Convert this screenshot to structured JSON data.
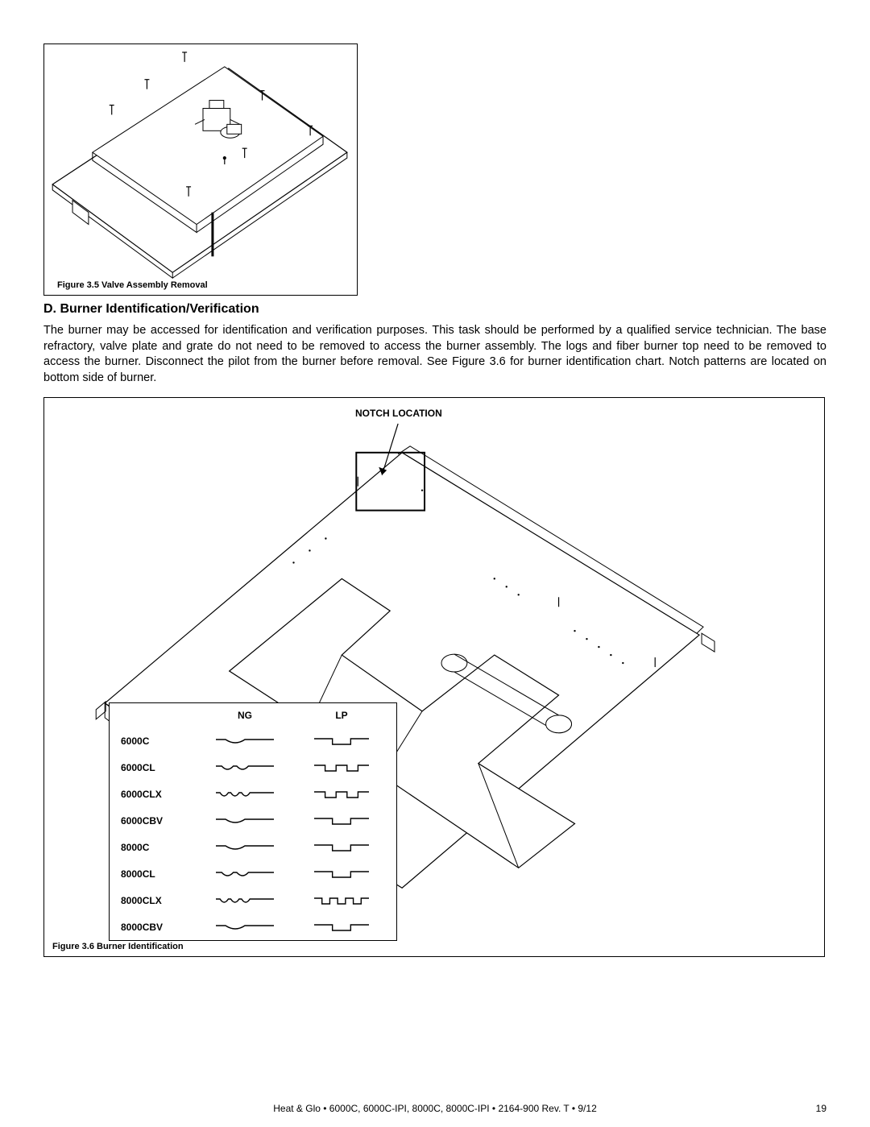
{
  "figure35": {
    "caption": "Figure 3.5  Valve Assembly Removal"
  },
  "section": {
    "heading": "D.  Burner Identification/Verification",
    "paragraph": "The burner may be accessed for identification and verification purposes. This task should be performed by a qualified service technician.  The base refractory, valve plate and grate do not need to be removed to access the burner assembly. The logs and fiber burner top need to be removed to access the burner.  Disconnect the pilot from the burner before removal. See Figure 3.6 for burner identification chart. Notch patterns are located on bottom side of burner."
  },
  "figure36": {
    "notch_label": "NOTCH LOCATION",
    "caption": "Figure 3.6  Burner Identification",
    "table": {
      "headers": {
        "ng": "NG",
        "lp": "LP"
      },
      "rows": [
        {
          "model": "6000C",
          "ng_notches": 1,
          "lp_notches": 1
        },
        {
          "model": "6000CL",
          "ng_notches": 2,
          "lp_notches": 2
        },
        {
          "model": "6000CLX",
          "ng_notches": 3,
          "lp_notches": 2
        },
        {
          "model": "6000CBV",
          "ng_notches": 1,
          "lp_notches": 1
        },
        {
          "model": "8000C",
          "ng_notches": 1,
          "lp_notches": 1
        },
        {
          "model": "8000CL",
          "ng_notches": 2,
          "lp_notches": 1
        },
        {
          "model": "8000CLX",
          "ng_notches": 3,
          "lp_notches": 3
        },
        {
          "model": "8000CBV",
          "ng_notches": 1,
          "lp_notches": 1
        }
      ]
    }
  },
  "footer": {
    "center": "Heat & Glo  •  6000C, 6000C-IPI, 8000C, 8000C-IPI  •  2164-900 Rev. T  •  9/12",
    "page_number": "19"
  },
  "colors": {
    "stroke": "#000000",
    "background": "#ffffff"
  }
}
